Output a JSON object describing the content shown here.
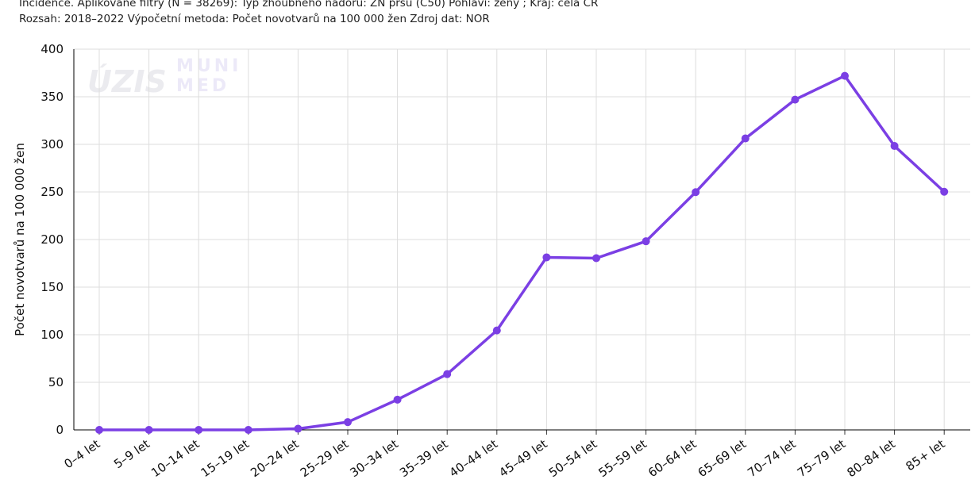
{
  "header": {
    "line1": "Incidence. Aplikované filtry (N = 38269): Typ zhoubného nádoru: ZN prsu (C50) Pohlaví: ženy ; Kraj: celá ČR",
    "line2": "Rozsah: 2018–2022 Výpočetní metoda: Počet novotvarů na 100 000 žen Zdroj dat: NOR"
  },
  "watermark": {
    "left": "ÚZIS",
    "right_top": "MUNI",
    "right_bottom": "MED"
  },
  "colors": {
    "line": "#7b3fe4",
    "grid": "#dddddd",
    "axis": "#000000"
  },
  "chart_data": {
    "type": "line",
    "title": "",
    "xlabel": "",
    "ylabel": "Počet novotvarů na 100 000 žen",
    "ylim": [
      0,
      400
    ],
    "yticks": [
      0,
      50,
      100,
      150,
      200,
      250,
      300,
      350,
      400
    ],
    "grid": true,
    "categories": [
      "0–4 let",
      "5–9 let",
      "10–14 let",
      "15–19 let",
      "20–24 let",
      "25–29 let",
      "30–34 let",
      "35–39 let",
      "40–44 let",
      "45–49 let",
      "50–54 let",
      "55–59 let",
      "60–64 let",
      "65–69 let",
      "70–74 let",
      "75–79 let",
      "80–84 let",
      "85+ let"
    ],
    "series": [
      {
        "values": [
          0,
          0,
          0,
          0,
          1.2,
          8.2,
          31.8,
          58.6,
          104.5,
          181.3,
          180.4,
          198.2,
          249.8,
          306.2,
          347.0,
          372.0,
          298.3,
          250.2
        ]
      }
    ]
  }
}
